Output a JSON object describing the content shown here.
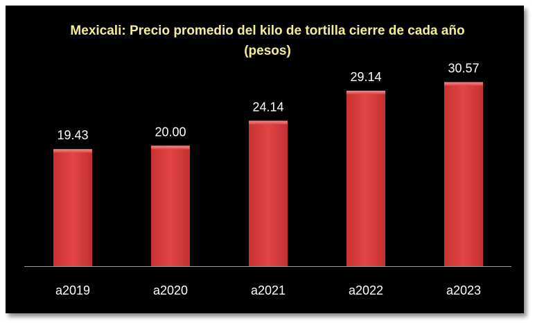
{
  "chart_data": {
    "type": "bar",
    "title_line1": "Mexicali: Precio promedio del kilo de tortilla cierre de cada año",
    "title_line2": "(pesos)",
    "categories": [
      "a2019",
      "a2020",
      "a2021",
      "a2022",
      "a2023"
    ],
    "values": [
      19.43,
      20.0,
      24.14,
      29.14,
      30.57
    ],
    "value_labels": [
      "19.43",
      "20.00",
      "24.14",
      "29.14",
      "30.57"
    ],
    "ylim": [
      0,
      35
    ],
    "grid": false,
    "legend": "none",
    "colors": {
      "bar": "#d93b3b",
      "bar_light": "#ee6a6a",
      "background": "#000000",
      "title": "#f3ec9a",
      "axis": "#9a9a9a"
    }
  }
}
